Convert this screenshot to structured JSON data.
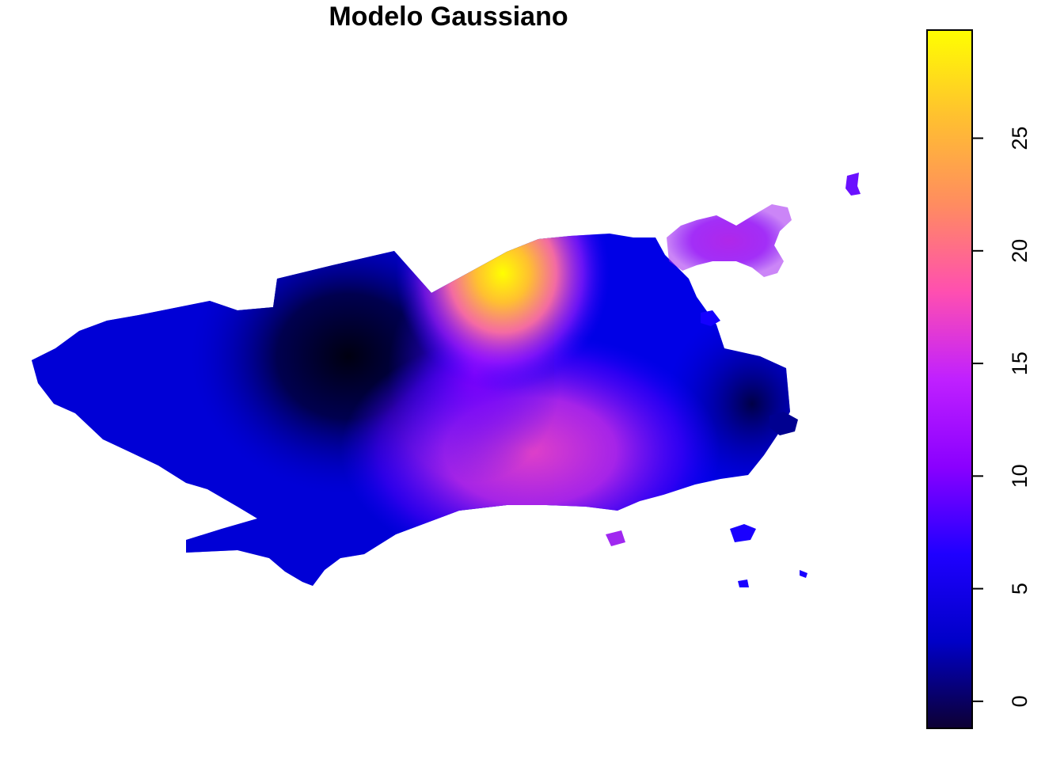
{
  "title": "Modelo Gaussiano",
  "legend": {
    "ticks": [
      {
        "value": 0,
        "label": "0"
      },
      {
        "value": 5,
        "label": "5"
      },
      {
        "value": 10,
        "label": "10"
      },
      {
        "value": 15,
        "label": "15"
      },
      {
        "value": 20,
        "label": "20"
      },
      {
        "value": 25,
        "label": "25"
      }
    ],
    "range": [
      -1.2,
      29.8
    ],
    "palette": [
      "#0d0033",
      "#0000c8",
      "#1f00ff",
      "#8a00ff",
      "#c020ff",
      "#ff4fb0",
      "#ff8c60",
      "#ffc030",
      "#ffff00"
    ]
  },
  "map_colors": {
    "background": "#0000e6",
    "low": "#000018",
    "high": "#ffff00",
    "mid": "#cc3bd4"
  }
}
